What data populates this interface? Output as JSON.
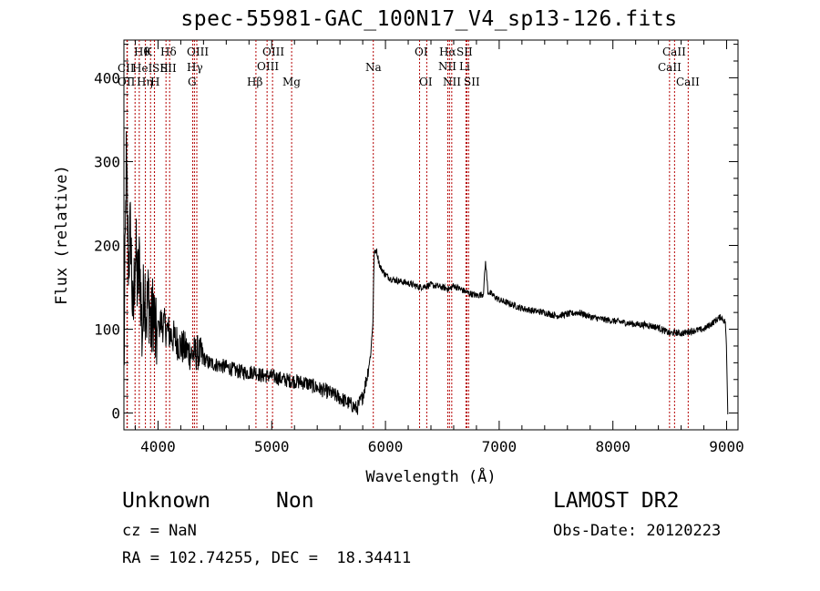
{
  "title": "spec-55981-GAC_100N17_V4_sp13-126.fits",
  "info": {
    "class": "Unknown",
    "subclass": "Non",
    "survey": "LAMOST DR2",
    "cz": "cz = NaN",
    "obs_date": "Obs-Date: 20120223",
    "coords": "RA = 102.74255, DEC =  18.34411"
  },
  "chart_data": {
    "type": "line",
    "xlabel": "Wavelength (Å)",
    "ylabel": "Flux (relative)",
    "xlim": [
      3700,
      9100
    ],
    "ylim": [
      -20,
      445
    ],
    "xticks": [
      4000,
      5000,
      6000,
      7000,
      8000,
      9000
    ],
    "xtick_labels": [
      "4000",
      "5000",
      "6000",
      "7000",
      "8000",
      "9000"
    ],
    "yticks": [
      0,
      100,
      200,
      300,
      400
    ],
    "ytick_labels": [
      "0",
      "100",
      "200",
      "300",
      "400"
    ],
    "grid": false,
    "line_color": "#000000",
    "marker_color": "#b40000",
    "series": [
      {
        "x": [
          3700,
          3720,
          3740,
          3760,
          3780,
          3800,
          3820,
          3840,
          3860,
          3880,
          3900,
          3920,
          3940,
          3960,
          3980,
          4000,
          4050,
          4100,
          4150,
          4200,
          4250,
          4300,
          4350,
          4400,
          4450,
          4500,
          4600,
          4700,
          4800,
          4850,
          4900,
          5000,
          5100,
          5200,
          5300,
          5400,
          5500,
          5600,
          5700,
          5750,
          5800,
          5840,
          5870,
          5890,
          5900,
          5920,
          5950,
          6000,
          6050,
          6100,
          6200,
          6300,
          6400,
          6500,
          6563,
          6600,
          6700,
          6800,
          6860,
          6880,
          6890,
          6900,
          6950,
          7000,
          7100,
          7200,
          7300,
          7400,
          7500,
          7600,
          7700,
          7800,
          7900,
          8000,
          8100,
          8200,
          8300,
          8400,
          8500,
          8550,
          8600,
          8700,
          8800,
          8900,
          8950,
          8990,
          9000,
          9010
        ],
        "y": [
          40,
          300,
          180,
          220,
          100,
          200,
          150,
          180,
          90,
          160,
          120,
          140,
          95,
          130,
          80,
          110,
          105,
          95,
          88,
          80,
          75,
          70,
          72,
          65,
          60,
          58,
          55,
          50,
          48,
          50,
          45,
          44,
          40,
          38,
          36,
          30,
          25,
          18,
          10,
          5,
          20,
          45,
          70,
          110,
          190,
          195,
          175,
          165,
          160,
          158,
          155,
          150,
          153,
          150,
          148,
          152,
          145,
          140,
          142,
          180,
          165,
          145,
          140,
          135,
          130,
          125,
          122,
          120,
          116,
          118,
          120,
          115,
          112,
          110,
          108,
          106,
          105,
          102,
          95,
          96,
          95,
          98,
          100,
          110,
          115,
          108,
          70,
          0
        ]
      }
    ],
    "lines": [
      {
        "label": "CII",
        "wavelength": 3730
      },
      {
        "label": "OII",
        "wavelength": 3727
      },
      {
        "label": "Hθ",
        "wavelength": 3798
      },
      {
        "label": "Hη",
        "wavelength": 3835
      },
      {
        "label": "HeI",
        "wavelength": 3889
      },
      {
        "label": "K",
        "wavelength": 3934
      },
      {
        "label": "SII",
        "wavelength": 3969
      },
      {
        "label": "H",
        "wavelength": 3968
      },
      {
        "label": "Hδ",
        "wavelength": 4102
      },
      {
        "label": "SII",
        "wavelength": 4070
      },
      {
        "label": "OIII",
        "wavelength": 4320
      },
      {
        "label": "Hγ",
        "wavelength": 4341
      },
      {
        "label": "G",
        "wavelength": 4305
      },
      {
        "label": "Hβ",
        "wavelength": 4861
      },
      {
        "label": "OIII",
        "wavelength": 4959
      },
      {
        "label": "OIII",
        "wavelength": 5007
      },
      {
        "label": "Mg",
        "wavelength": 5175
      },
      {
        "label": "Na",
        "wavelength": 5893
      },
      {
        "label": "OI",
        "wavelength": 6300
      },
      {
        "label": "OI",
        "wavelength": 6363
      },
      {
        "label": "Hα",
        "wavelength": 6563
      },
      {
        "label": "NII",
        "wavelength": 6548
      },
      {
        "label": "NII",
        "wavelength": 6583
      },
      {
        "label": "SII",
        "wavelength": 6716
      },
      {
        "label": "Li",
        "wavelength": 6708
      },
      {
        "label": "SII",
        "wavelength": 6731
      },
      {
        "label": "CaII",
        "wavelength": 8542
      },
      {
        "label": "CaII",
        "wavelength": 8498
      },
      {
        "label": "CaII",
        "wavelength": 8662
      }
    ]
  }
}
